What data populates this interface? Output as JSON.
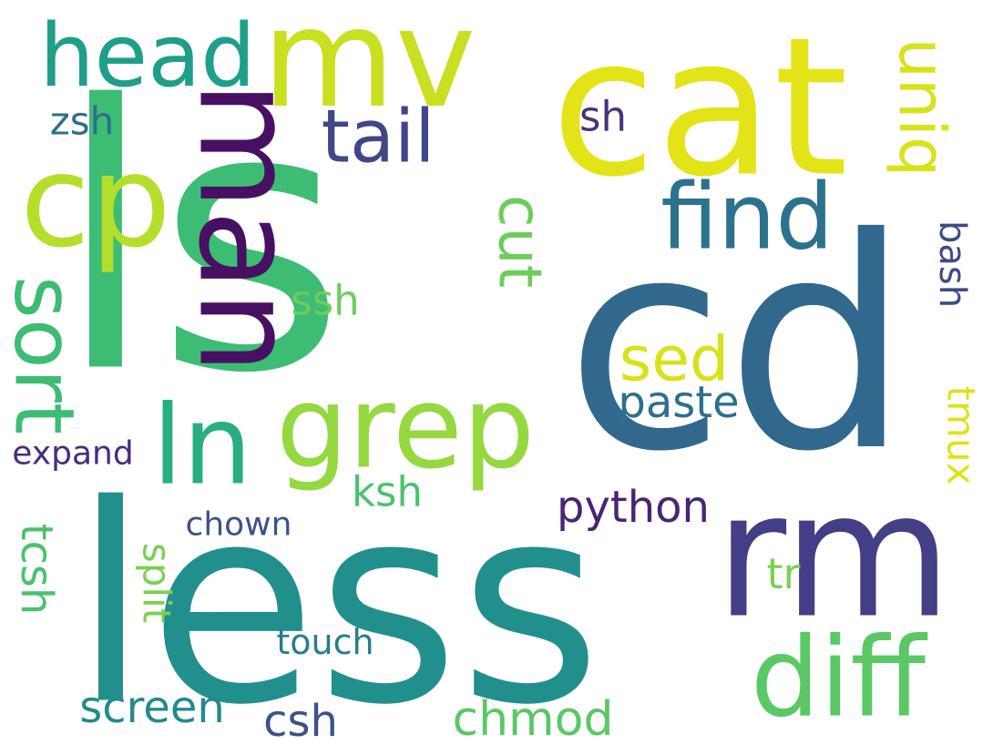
{
  "words": [
    {
      "text": "ls",
      "color": "#3dbc74"
    },
    {
      "text": "cd",
      "color": "#31688e"
    },
    {
      "text": "less",
      "color": "#21908d"
    },
    {
      "text": "cat",
      "color": "#e3e418"
    },
    {
      "text": "rm",
      "color": "#433e85"
    },
    {
      "text": "mv",
      "color": "#c8e020"
    },
    {
      "text": "diff",
      "color": "#5ac864"
    },
    {
      "text": "head",
      "color": "#1f9e89"
    },
    {
      "text": "cp",
      "color": "#b5de2b"
    },
    {
      "text": "man",
      "color": "#471063"
    },
    {
      "text": "find",
      "color": "#2c728e"
    },
    {
      "text": "grep",
      "color": "#95d840"
    },
    {
      "text": "ln",
      "color": "#28ae80"
    },
    {
      "text": "tail",
      "color": "#3f4788"
    },
    {
      "text": "uniq",
      "color": "#d8e219"
    },
    {
      "text": "sort",
      "color": "#3dbc74"
    },
    {
      "text": "cut",
      "color": "#6ccd5a"
    },
    {
      "text": "sed",
      "color": "#d8e219"
    },
    {
      "text": "paste",
      "color": "#2d708e"
    },
    {
      "text": "python",
      "color": "#482475"
    },
    {
      "text": "screen",
      "color": "#238a8d"
    },
    {
      "text": "chmod",
      "color": "#5ac864"
    },
    {
      "text": "csh",
      "color": "#3b528b"
    },
    {
      "text": "tcsh",
      "color": "#4ac16d"
    },
    {
      "text": "split",
      "color": "#7ad151"
    },
    {
      "text": "touch",
      "color": "#287d8e"
    },
    {
      "text": "ssh",
      "color": "#6ccd5a"
    },
    {
      "text": "sh",
      "color": "#46327e"
    },
    {
      "text": "zsh",
      "color": "#2e6e8e"
    },
    {
      "text": "bash",
      "color": "#3e4a89"
    },
    {
      "text": "ksh",
      "color": "#4ac16d"
    },
    {
      "text": "tmux",
      "color": "#dde318"
    },
    {
      "text": "expand",
      "color": "#472d7b"
    },
    {
      "text": "chown",
      "color": "#3b528b"
    },
    {
      "text": "tr",
      "color": "#7ad151"
    }
  ]
}
